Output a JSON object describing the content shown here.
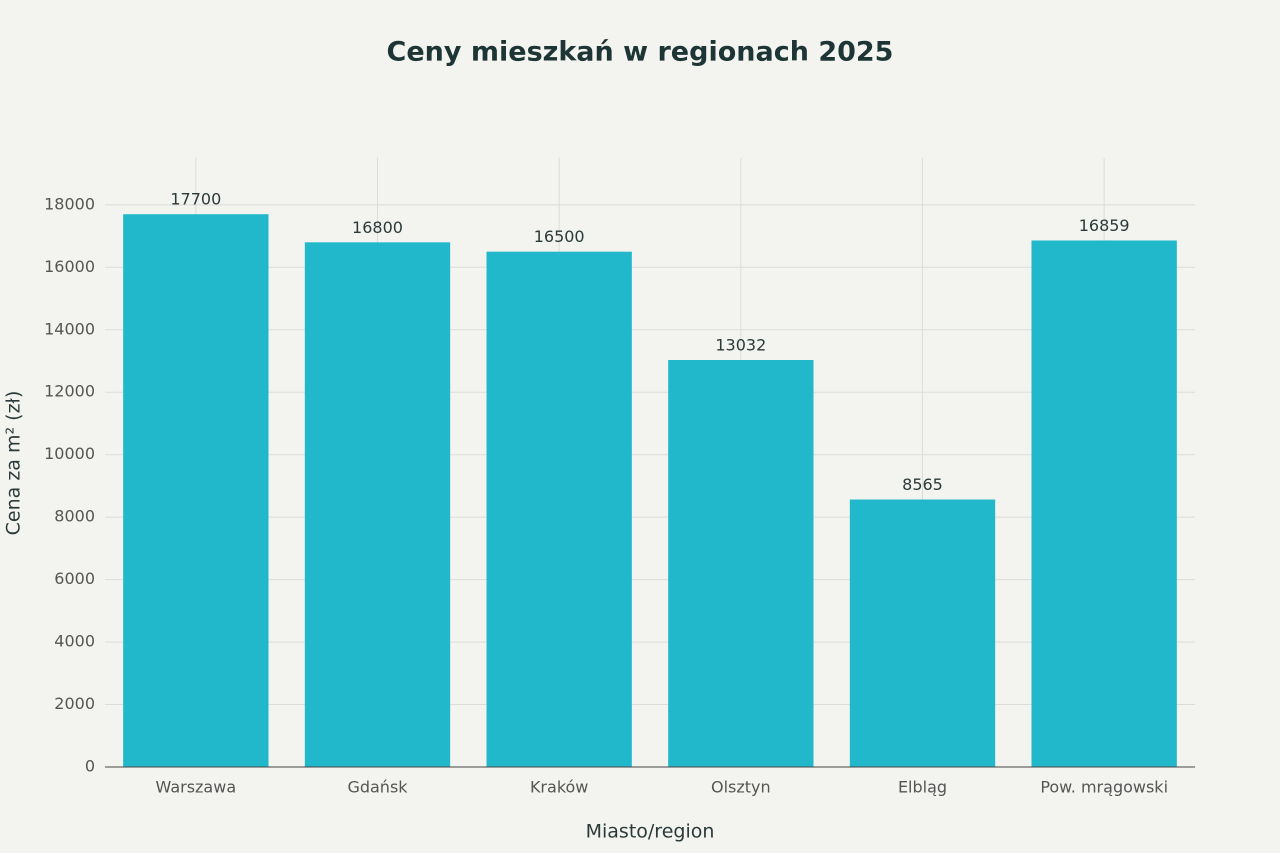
{
  "chart_data": {
    "type": "bar",
    "title": "Ceny mieszkań w regionach 2025",
    "x_label": "Miasto/region",
    "y_label": "Cena za m² (zł)",
    "categories": [
      "Warszawa",
      "Gdańsk",
      "Kraków",
      "Olsztyn",
      "Elbląg",
      "Pow. mrągowski"
    ],
    "values": [
      17700,
      16800,
      16500,
      13032,
      8565,
      16859
    ],
    "color": "#22b8cc",
    "ylim": [
      0,
      19500
    ],
    "yticks": [
      0,
      2000,
      4000,
      6000,
      8000,
      10000,
      12000,
      14000,
      16000,
      18000
    ],
    "grid": true
  }
}
